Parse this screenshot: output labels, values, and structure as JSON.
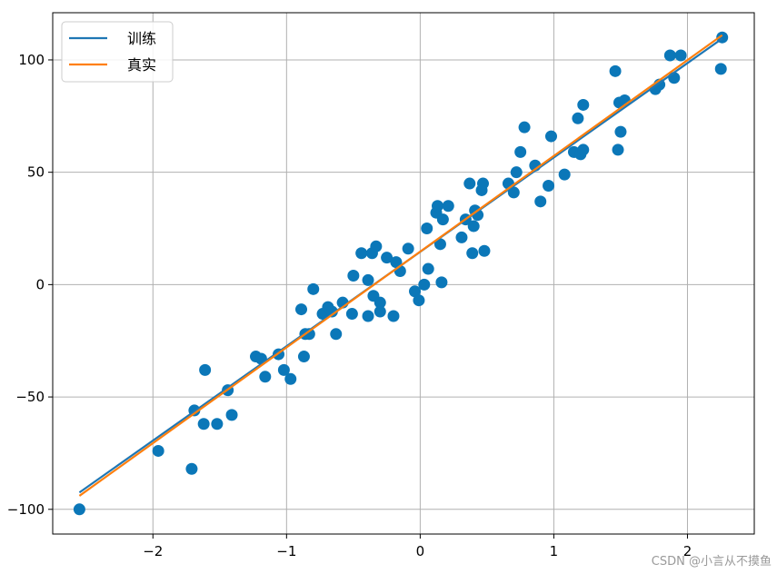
{
  "chart_data": {
    "type": "scatter",
    "xlim": [
      -2.75,
      2.5
    ],
    "ylim": [
      -111,
      121
    ],
    "xticks": [
      -2,
      -1,
      0,
      1,
      2
    ],
    "xtick_labels": [
      "−2",
      "−1",
      "0",
      "1",
      "2"
    ],
    "yticks": [
      -100,
      -50,
      0,
      50,
      100
    ],
    "ytick_labels": [
      "−100",
      "−50",
      "0",
      "50",
      "100"
    ],
    "grid": true,
    "legend_position": "top-left",
    "colors": {
      "scatter": "#0b77b8",
      "train": "#1f77b4",
      "true": "#ff7f0e"
    },
    "series": [
      {
        "name": "训练",
        "type": "line",
        "x": [
          -2.55,
          2.26
        ],
        "y": [
          -92.5,
          109.5
        ]
      },
      {
        "name": "真实",
        "type": "line",
        "x": [
          -2.55,
          2.26
        ],
        "y": [
          -94.0,
          111.0
        ]
      },
      {
        "type": "scatter",
        "points": [
          [
            -2.55,
            -100
          ],
          [
            -1.96,
            -74
          ],
          [
            -1.71,
            -82
          ],
          [
            -1.69,
            -56
          ],
          [
            -1.62,
            -62
          ],
          [
            -1.61,
            -38
          ],
          [
            -1.52,
            -62
          ],
          [
            -1.44,
            -47
          ],
          [
            -1.41,
            -58
          ],
          [
            -1.23,
            -32
          ],
          [
            -1.19,
            -33
          ],
          [
            -1.16,
            -41
          ],
          [
            -1.06,
            -31
          ],
          [
            -1.02,
            -38
          ],
          [
            -0.97,
            -42
          ],
          [
            -0.89,
            -11
          ],
          [
            -0.87,
            -32
          ],
          [
            -0.86,
            -22
          ],
          [
            -0.83,
            -22
          ],
          [
            -0.8,
            -2
          ],
          [
            -0.73,
            -13
          ],
          [
            -0.69,
            -10
          ],
          [
            -0.66,
            -12
          ],
          [
            -0.63,
            -22
          ],
          [
            -0.58,
            -8
          ],
          [
            -0.51,
            -13
          ],
          [
            -0.5,
            4
          ],
          [
            -0.44,
            14
          ],
          [
            -0.39,
            -14
          ],
          [
            -0.39,
            2
          ],
          [
            -0.36,
            14
          ],
          [
            -0.35,
            -5
          ],
          [
            -0.33,
            17
          ],
          [
            -0.3,
            -12
          ],
          [
            -0.3,
            -8
          ],
          [
            -0.25,
            12
          ],
          [
            -0.2,
            -14
          ],
          [
            -0.18,
            10
          ],
          [
            -0.15,
            6
          ],
          [
            -0.09,
            16
          ],
          [
            -0.04,
            -3
          ],
          [
            -0.01,
            -7
          ],
          [
            0.03,
            0
          ],
          [
            0.05,
            25
          ],
          [
            0.06,
            7
          ],
          [
            0.12,
            32
          ],
          [
            0.13,
            35
          ],
          [
            0.15,
            18
          ],
          [
            0.16,
            1
          ],
          [
            0.17,
            29
          ],
          [
            0.21,
            35
          ],
          [
            0.31,
            21
          ],
          [
            0.34,
            29
          ],
          [
            0.37,
            45
          ],
          [
            0.39,
            14
          ],
          [
            0.4,
            26
          ],
          [
            0.41,
            33
          ],
          [
            0.43,
            31
          ],
          [
            0.46,
            42
          ],
          [
            0.47,
            45
          ],
          [
            0.48,
            15
          ],
          [
            0.66,
            45
          ],
          [
            0.7,
            41
          ],
          [
            0.72,
            50
          ],
          [
            0.75,
            59
          ],
          [
            0.78,
            70
          ],
          [
            0.86,
            53
          ],
          [
            0.9,
            37
          ],
          [
            0.96,
            44
          ],
          [
            0.98,
            66
          ],
          [
            1.08,
            49
          ],
          [
            1.15,
            59
          ],
          [
            1.18,
            74
          ],
          [
            1.2,
            58
          ],
          [
            1.22,
            60
          ],
          [
            1.22,
            80
          ],
          [
            1.46,
            95
          ],
          [
            1.48,
            60
          ],
          [
            1.49,
            81
          ],
          [
            1.5,
            68
          ],
          [
            1.53,
            82
          ],
          [
            1.76,
            87
          ],
          [
            1.79,
            89
          ],
          [
            1.87,
            102
          ],
          [
            1.9,
            92
          ],
          [
            1.95,
            102
          ],
          [
            2.25,
            96
          ],
          [
            2.26,
            110
          ]
        ]
      }
    ]
  },
  "watermark": "CSDN @小言从不摸鱼"
}
